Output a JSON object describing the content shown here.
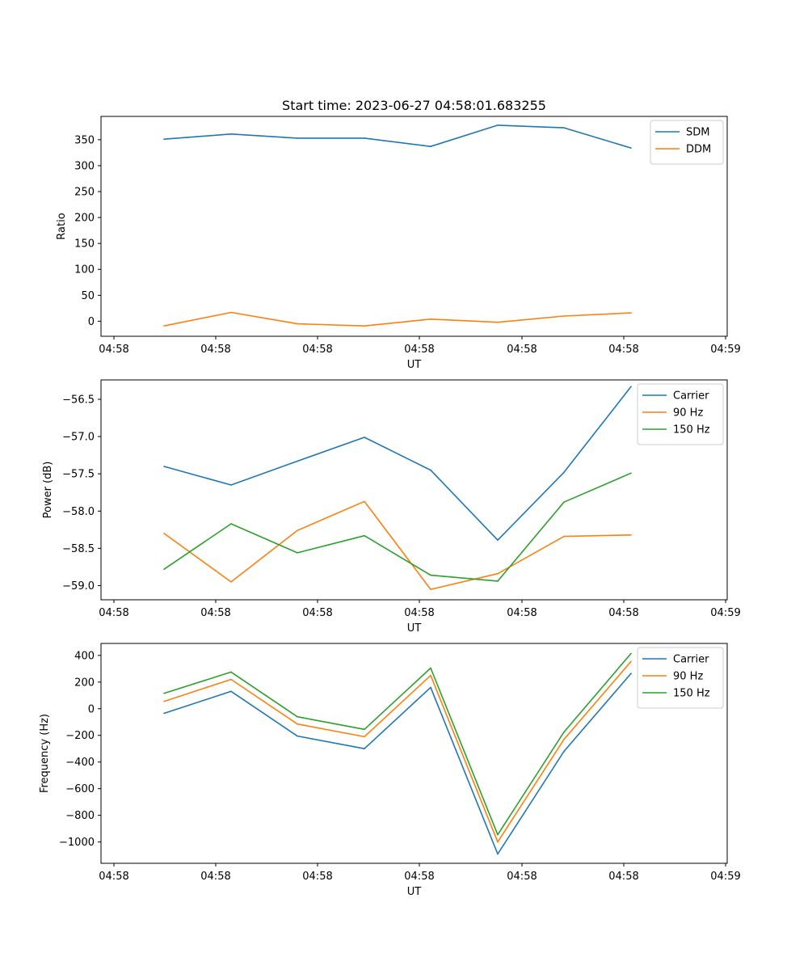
{
  "figure": {
    "title": "Start time: 2023-06-27 04:58:01.683255"
  },
  "chart_data": [
    {
      "type": "line",
      "xlabel": "UT",
      "ylabel": "Ratio",
      "x_tick_labels": [
        "04:58",
        "04:58",
        "04:58",
        "04:58",
        "04:58",
        "04:58",
        "04:59"
      ],
      "y_ticks": [
        0,
        50,
        100,
        150,
        200,
        250,
        300,
        350
      ],
      "ylim": [
        -29,
        395
      ],
      "legend_position": "top-right",
      "series": [
        {
          "name": "SDM",
          "color": "#1f77b4",
          "values": [
            351,
            361,
            353,
            353,
            337,
            378,
            373,
            334
          ]
        },
        {
          "name": "DDM",
          "color": "#ff7f0e",
          "values": [
            -9,
            17,
            -5,
            -9,
            4,
            -2,
            10,
            16
          ]
        }
      ]
    },
    {
      "type": "line",
      "xlabel": "UT",
      "ylabel": "Power (dB)",
      "x_tick_labels": [
        "04:58",
        "04:58",
        "04:58",
        "04:58",
        "04:58",
        "04:58",
        "04:59"
      ],
      "y_ticks": [
        -56.5,
        -57.0,
        -57.5,
        -58.0,
        -58.5,
        -59.0
      ],
      "ylim": [
        -59.19,
        -56.24
      ],
      "legend_position": "top-right",
      "series": [
        {
          "name": "Carrier",
          "color": "#1f77b4",
          "values": [
            -57.4,
            -57.65,
            -57.33,
            -57.01,
            -57.45,
            -58.39,
            -57.48,
            -56.33
          ]
        },
        {
          "name": "90 Hz",
          "color": "#ff7f0e",
          "values": [
            -58.3,
            -58.95,
            -58.26,
            -57.87,
            -59.05,
            -58.84,
            -58.34,
            -58.32
          ]
        },
        {
          "name": "150 Hz",
          "color": "#2ca02c",
          "values": [
            -58.78,
            -58.17,
            -58.56,
            -58.33,
            -58.86,
            -58.94,
            -57.88,
            -57.49
          ]
        }
      ]
    },
    {
      "type": "line",
      "xlabel": "UT",
      "ylabel": "Frequency (Hz)",
      "x_tick_labels": [
        "04:58",
        "04:58",
        "04:58",
        "04:58",
        "04:58",
        "04:58",
        "04:59"
      ],
      "y_ticks": [
        400,
        200,
        0,
        -200,
        -400,
        -600,
        -800,
        -1000
      ],
      "ylim": [
        -1160,
        490
      ],
      "legend_position": "top-right",
      "series": [
        {
          "name": "Carrier",
          "color": "#1f77b4",
          "values": [
            -35,
            130,
            -205,
            -300,
            160,
            -1090,
            -320,
            265
          ]
        },
        {
          "name": "90 Hz",
          "color": "#ff7f0e",
          "values": [
            55,
            220,
            -115,
            -210,
            250,
            -1000,
            -230,
            355
          ]
        },
        {
          "name": "150 Hz",
          "color": "#2ca02c",
          "values": [
            115,
            275,
            -60,
            -155,
            305,
            -945,
            -175,
            415
          ]
        }
      ]
    }
  ]
}
